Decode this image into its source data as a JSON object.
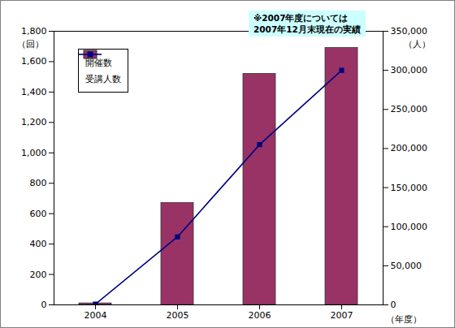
{
  "chart_data": {
    "type": "bar",
    "categories": [
      "2004",
      "2005",
      "2006",
      "2007"
    ],
    "xlabel": "（年度）",
    "ylabel": "（回）",
    "y2label": "（人）",
    "annotation": "※2007年度については\n2007年12月末現在の実績",
    "series": [
      {
        "name": "開催数",
        "type": "bar",
        "color": "#993366",
        "values": [
          10,
          670,
          1520,
          1690
        ]
      },
      {
        "name": "受講人数",
        "type": "line",
        "color": "#000080",
        "marker": "square",
        "line_style": "solid",
        "axis": "y2",
        "values": [
          1000,
          87000,
          205000,
          300000
        ]
      }
    ],
    "ylim": [
      0,
      1800
    ],
    "yticks": [
      0,
      200,
      400,
      600,
      800,
      {
        "value": 1000,
        "label": "1,000"
      },
      {
        "value": 1200,
        "label": "1,200"
      },
      {
        "value": 1400,
        "label": "1,400"
      },
      {
        "value": 1600,
        "label": "1,600"
      },
      {
        "value": 1800,
        "label": "1,800"
      }
    ],
    "y2lim": [
      0,
      350000
    ],
    "y2ticks": [
      0,
      {
        "value": 50000,
        "label": "50,000"
      },
      {
        "value": 100000,
        "label": "100,000"
      },
      {
        "value": 150000,
        "label": "150,000"
      },
      {
        "value": 200000,
        "label": "200,000"
      },
      {
        "value": 250000,
        "label": "250,000"
      },
      {
        "value": 300000,
        "label": "300,000"
      },
      {
        "value": 350000,
        "label": "350,000"
      }
    ],
    "legend": "top-left",
    "grid": false
  }
}
